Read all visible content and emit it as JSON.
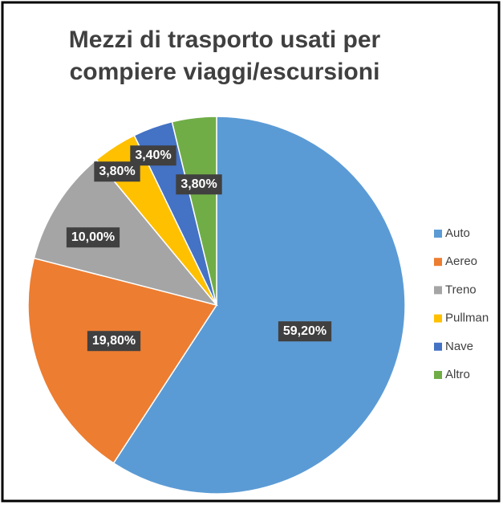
{
  "chart_data": {
    "type": "pie",
    "title": "Mezzi di trasporto usati per compiere viaggi/escursioni",
    "categories": [
      "Auto",
      "Aereo",
      "Treno",
      "Pullman",
      "Nave",
      "Altro"
    ],
    "values": [
      59.2,
      19.8,
      10.0,
      3.8,
      3.4,
      3.8
    ],
    "value_labels": [
      "59,20%",
      "19,80%",
      "10,00%",
      "3,80%",
      "3,40%",
      "3,80%"
    ],
    "colors": [
      "#5b9bd5",
      "#ed7d31",
      "#a5a5a5",
      "#ffc000",
      "#4472c4",
      "#70ad47"
    ],
    "legend": "right"
  }
}
